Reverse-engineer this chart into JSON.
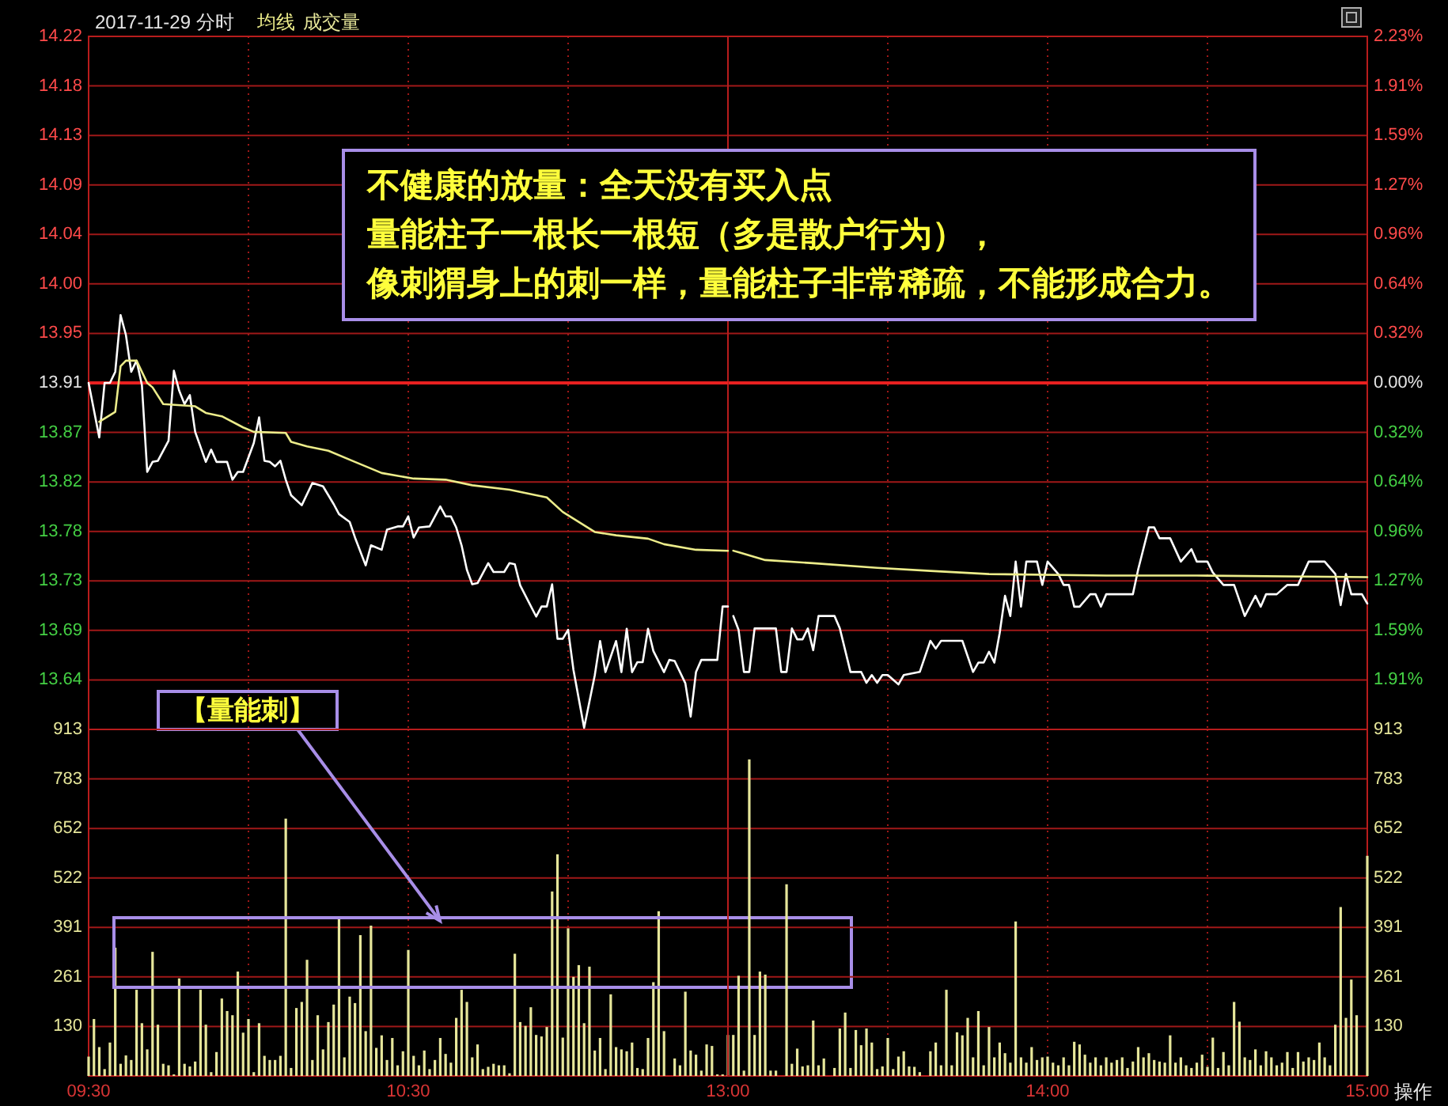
{
  "chart_data": [
    {
      "type": "line",
      "title": "2017-11-29 分时",
      "xlim": [
        9.5,
        11.5
      ],
      "xticks": [
        9.5,
        10,
        10.5,
        11,
        11.5
      ],
      "ylim": [
        13.5985,
        14.2215
      ],
      "yticks": [
        {
          "value": 13.643,
          "label": "13.64"
        },
        {
          "value": 13.6875,
          "label": "13.69"
        },
        {
          "value": 13.732,
          "label": "13.73"
        },
        {
          "value": 13.7765,
          "label": "13.78"
        },
        {
          "value": 13.821,
          "label": "13.82"
        },
        {
          "value": 13.8655,
          "label": "13.87"
        },
        {
          "value": 13.91,
          "label": "13.91"
        },
        {
          "value": 13.9545,
          "label": "13.95"
        },
        {
          "value": 13.999,
          "label": "14.00"
        },
        {
          "value": 14.0435,
          "label": "14.04"
        },
        {
          "value": 14.088,
          "label": "14.09"
        },
        {
          "value": 14.1325,
          "label": "14.13"
        },
        {
          "value": 14.177,
          "label": "14.18"
        },
        {
          "value": 14.2215,
          "label": "14.22"
        }
      ],
      "tick_labels": "y",
      "grid": true,
      "legend": "top left",
      "ref_lines": [
        {
          "axis": "y",
          "value": 13.91,
          "color": "#e82020"
        }
      ],
      "annotations": [
        "不健康的放量：全天没有买入点",
        "量能柱子一根长一根短（多是散户行为），像刺猬身上的刺一样，量能柱子非常稀疏，不能形成合力。"
      ],
      "series": [
        {
          "color": "#ffffff",
          "x": [
            9.5,
            9.5333,
            9.55,
            9.5667,
            9.5833,
            9.6,
            9.6167,
            9.6333,
            9.65,
            9.6667,
            9.6833,
            9.7,
            9.7167,
            9.75,
            9.7667,
            9.7833,
            9.8,
            9.8167,
            9.8333,
            9.8667,
            9.8833,
            9.9,
            9.9333,
            9.95,
            9.9667,
            9.9833,
            10.0167,
            10.0333,
            10.05,
            10.0667,
            10.0833,
            10.1,
            10.1167,
            10.1333,
            10.1667,
            10.2,
            10.2333,
            10.2667,
            10.2833,
            10.3167,
            10.3333,
            10.3667,
            10.3833,
            10.4167,
            10.4333,
            10.4667,
            10.4833,
            10.5,
            10.5167,
            10.5333,
            10.5667,
            10.6,
            10.6167,
            10.6333,
            10.65,
            10.6667,
            10.6833,
            10.7,
            10.7167,
            10.75,
            10.7667,
            10.8,
            10.8167,
            10.8333,
            10.85,
            10.9,
            10.9167,
            10.9333,
            10.95,
            10.9667,
            10.9833,
            11,
            11.0167,
            11.05,
            11.0833,
            11.1,
            11.1167,
            11.15,
            11.1667,
            11.1833,
            11.2,
            11.2167,
            11.2333,
            11.25,
            11.2667,
            11.3,
            11.3167,
            11.3333,
            11.3667,
            11.3833,
            11.4,
            11.4167,
            11.4667,
            11.4833,
            11.5
          ],
          "values": [
            13.91,
            13.861,
            13.91,
            13.91,
            13.92,
            13.971,
            13.953,
            13.92,
            13.93,
            13.908,
            13.83,
            13.839,
            13.84,
            13.858,
            13.921,
            13.903,
            13.891,
            13.899,
            13.866,
            13.839,
            13.85,
            13.839,
            13.839,
            13.823,
            13.83,
            13.83,
            13.856,
            13.879,
            13.84,
            13.839,
            13.835,
            13.84,
            13.823,
            13.809,
            13.8,
            13.82,
            13.817,
            13.801,
            13.792,
            13.785,
            13.771,
            13.746,
            13.764,
            13.76,
            13.778,
            13.781,
            13.781,
            13.79,
            13.771,
            13.78,
            13.781,
            13.799,
            13.79,
            13.79,
            13.78,
            13.764,
            13.742,
            13.729,
            13.73,
            13.748,
            13.74,
            13.74,
            13.748,
            13.747,
            13.728,
            13.7,
            13.709,
            13.709,
            13.729,
            13.68,
            13.68,
            13.688,
            13.652,
            13.6,
            13.647,
            13.678,
            13.65,
            13.678,
            13.65,
            13.689,
            13.65,
            13.659,
            13.659,
            13.689,
            13.669,
            13.65,
            13.661,
            13.66,
            13.64,
            13.61,
            13.65,
            13.661,
            13.661,
            13.709,
            13.709
          ]
        },
        {
          "name": "均线",
          "color": "#ecec8a",
          "x": [
            9.5333,
            9.5833,
            9.6,
            9.6167,
            9.65,
            9.6833,
            9.7,
            9.7333,
            9.8333,
            9.8667,
            9.9167,
            9.9833,
            10.0167,
            10.1167,
            10.1333,
            10.1833,
            10.25,
            10.3333,
            10.4167,
            10.5167,
            10.6167,
            10.7,
            10.8167,
            10.9333,
            10.9833,
            11.0833,
            11.15,
            11.25,
            11.3,
            11.4,
            11.5
          ],
          "values": [
            13.875,
            13.884,
            13.925,
            13.93,
            13.93,
            13.91,
            13.906,
            13.891,
            13.889,
            13.883,
            13.88,
            13.87,
            13.866,
            13.865,
            13.857,
            13.853,
            13.849,
            13.839,
            13.829,
            13.824,
            13.823,
            13.818,
            13.814,
            13.807,
            13.794,
            13.776,
            13.773,
            13.77,
            13.765,
            13.76,
            13.759
          ]
        }
      ]
    },
    {
      "type": "line",
      "xlim": [
        13,
        15
      ],
      "xticks": [
        13,
        13.5,
        14,
        14.5,
        15
      ],
      "ylim": [
        -2.23,
        2.23
      ],
      "yticks": [
        {
          "value": -1.9114,
          "label": "1.91%"
        },
        {
          "value": -1.5929,
          "label": "1.59%"
        },
        {
          "value": -1.2743,
          "label": "1.27%"
        },
        {
          "value": -0.9557,
          "label": "0.96%"
        },
        {
          "value": -0.6371,
          "label": "0.64%"
        },
        {
          "value": -0.3186,
          "label": "0.32%"
        },
        {
          "value": 0,
          "label": "0.00%"
        },
        {
          "value": 0.3186,
          "label": "0.32%"
        },
        {
          "value": 0.6371,
          "label": "0.64%"
        },
        {
          "value": 0.9557,
          "label": "0.96%"
        },
        {
          "value": 1.2743,
          "label": "1.27%"
        },
        {
          "value": 1.5929,
          "label": "1.59%"
        },
        {
          "value": 1.9114,
          "label": "1.91%"
        },
        {
          "value": 2.23,
          "label": "2.23%"
        }
      ],
      "tick_labels": "y",
      "grid": true,
      "ref_lines": [
        {
          "axis": "y",
          "value": 0,
          "color": "#e82020"
        }
      ],
      "series": [
        {
          "color": "#ffffff",
          "x": [
            13.0167,
            13.0333,
            13.05,
            13.0667,
            13.0833,
            13.15,
            13.1667,
            13.1833,
            13.2,
            13.2167,
            13.2333,
            13.25,
            13.2667,
            13.2833,
            13.3333,
            13.35,
            13.3833,
            13.4167,
            13.4333,
            13.45,
            13.4667,
            13.4833,
            13.5,
            13.5333,
            13.55,
            13.6,
            13.6333,
            13.65,
            13.6667,
            13.7333,
            13.7667,
            13.7833,
            13.8,
            13.8167,
            13.8333,
            13.85,
            13.8667,
            13.8833,
            13.9,
            13.9167,
            13.9333,
            13.9667,
            13.9833,
            14,
            14.0333,
            14.05,
            14.0667,
            14.0833,
            14.1,
            14.1333,
            14.15,
            14.1667,
            14.1833,
            14.2667,
            14.2833,
            14.3167,
            14.3333,
            14.35,
            14.3833,
            14.4167,
            14.45,
            14.4667,
            14.5,
            14.5167,
            14.55,
            14.5833,
            14.6167,
            14.65,
            14.6667,
            14.6833,
            14.7167,
            14.75,
            14.7833,
            14.8167,
            14.8667,
            14.9,
            14.9167,
            14.9333,
            14.95,
            14.9833,
            15
          ],
          "values": [
            -1.5,
            -1.59,
            -1.86,
            -1.86,
            -1.58,
            -1.58,
            -1.86,
            -1.86,
            -1.58,
            -1.65,
            -1.65,
            -1.58,
            -1.72,
            -1.5,
            -1.5,
            -1.58,
            -1.86,
            -1.86,
            -1.93,
            -1.88,
            -1.93,
            -1.88,
            -1.88,
            -1.94,
            -1.88,
            -1.86,
            -1.66,
            -1.71,
            -1.66,
            -1.66,
            -1.86,
            -1.8,
            -1.8,
            -1.73,
            -1.8,
            -1.61,
            -1.37,
            -1.5,
            -1.15,
            -1.44,
            -1.15,
            -1.15,
            -1.3,
            -1.15,
            -1.23,
            -1.3,
            -1.3,
            -1.44,
            -1.44,
            -1.36,
            -1.36,
            -1.44,
            -1.36,
            -1.36,
            -1.2,
            -0.93,
            -0.93,
            -1,
            -1,
            -1.15,
            -1.07,
            -1.15,
            -1.15,
            -1.22,
            -1.3,
            -1.3,
            -1.5,
            -1.37,
            -1.44,
            -1.36,
            -1.36,
            -1.3,
            -1.3,
            -1.15,
            -1.15,
            -1.23,
            -1.43,
            -1.23,
            -1.36,
            -1.36,
            -1.42
          ]
        },
        {
          "color": "#ecec8a",
          "x": [
            13.0167,
            13.0333,
            13.1167,
            13.2667,
            13.4667,
            13.6333,
            13.8167,
            14.1833,
            14.4667,
            15
          ],
          "values": [
            -1.08,
            -1.09,
            -1.14,
            -1.16,
            -1.19,
            -1.21,
            -1.23,
            -1.24,
            -1.24,
            -1.25
          ]
        }
      ]
    },
    {
      "type": "bar",
      "xlim": [
        9.5,
        11.5
      ],
      "xticks": [
        {
          "value": 9.5,
          "label": "09:30"
        },
        {
          "value": 10,
          "label": null
        },
        {
          "value": 10.5,
          "label": "10:30"
        },
        {
          "value": 11,
          "label": null
        }
      ],
      "ylim": [
        0,
        913
      ],
      "yticks": [
        {
          "value": 130.43,
          "label": "130"
        },
        {
          "value": 260.86,
          "label": "261"
        },
        {
          "value": 391.29,
          "label": "391"
        },
        {
          "value": 521.71,
          "label": "522"
        },
        {
          "value": 652.14,
          "label": "652"
        },
        {
          "value": 782.57,
          "label": "783"
        },
        {
          "value": 913,
          "label": "913"
        }
      ],
      "grid": true,
      "legend": "top left",
      "annotations": [
        "【量能刺】"
      ],
      "series": [
        {
          "name": "成交量",
          "color": "#e6e69a",
          "x": [
            9.5,
            9.5167,
            9.5333,
            9.55,
            9.5667,
            9.5833,
            9.6,
            9.6167,
            9.6333,
            9.65,
            9.6667,
            9.6833,
            9.7,
            9.7167,
            9.7333,
            9.75,
            9.7667,
            9.7833,
            9.8,
            9.8167,
            9.8333,
            9.85,
            9.8667,
            9.8833,
            9.9,
            9.9167,
            9.9333,
            9.95,
            9.9667,
            9.9833,
            10,
            10.0167,
            10.0333,
            10.05,
            10.0667,
            10.0833,
            10.1,
            10.1167,
            10.1333,
            10.15,
            10.1667,
            10.1833,
            10.2,
            10.2167,
            10.2333,
            10.25,
            10.2667,
            10.2833,
            10.3,
            10.3167,
            10.3333,
            10.35,
            10.3667,
            10.3833,
            10.4,
            10.4167,
            10.4333,
            10.45,
            10.4667,
            10.4833,
            10.5,
            10.5167,
            10.5333,
            10.55,
            10.5667,
            10.5833,
            10.6,
            10.6167,
            10.6333,
            10.65,
            10.6667,
            10.6833,
            10.7,
            10.7167,
            10.7333,
            10.75,
            10.7667,
            10.7833,
            10.8,
            10.8167,
            10.8333,
            10.85,
            10.8667,
            10.8833,
            10.9,
            10.9167,
            10.9333,
            10.95,
            10.9667,
            10.9833,
            11,
            11.0167,
            11.0333,
            11.05,
            11.0667,
            11.0833,
            11.1,
            11.1167,
            11.1333,
            11.15,
            11.1667,
            11.1833,
            11.2,
            11.2167,
            11.2333,
            11.25,
            11.2667,
            11.2833,
            11.3,
            11.3333,
            11.35,
            11.3667,
            11.3833,
            11.4,
            11.4167,
            11.4333,
            11.45,
            11.4667,
            11.4833,
            11.5
          ],
          "values": [
            51,
            150,
            76,
            18,
            88,
            338,
            32,
            54,
            42,
            227,
            139,
            70,
            327,
            135,
            32,
            28,
            4,
            257,
            32,
            25,
            38,
            227,
            135,
            10,
            63,
            204,
            171,
            160,
            275,
            114,
            150,
            10,
            139,
            53,
            42,
            42,
            53,
            678,
            21,
            179,
            195,
            306,
            42,
            160,
            70,
            142,
            188,
            420,
            49,
            209,
            192,
            371,
            118,
            396,
            74,
            107,
            42,
            100,
            28,
            65,
            332,
            53,
            28,
            67,
            18,
            42,
            100,
            58,
            35,
            153,
            227,
            195,
            49,
            83,
            18,
            24,
            32,
            28,
            28,
            7,
            322,
            142,
            132,
            181,
            108,
            104,
            129,
            486,
            584,
            101,
            389,
            261,
            292,
            139,
            288,
            67,
            100,
            18,
            215,
            76,
            70,
            65,
            88,
            21,
            18,
            100,
            247,
            434,
            118,
            46,
            28,
            222,
            67,
            56,
            14,
            83,
            79,
            4,
            4,
            108
          ]
        }
      ]
    },
    {
      "type": "bar",
      "xlim": [
        13,
        15
      ],
      "xticks": [
        {
          "value": 13,
          "label": "13:00"
        },
        {
          "value": 13.5,
          "label": null
        },
        {
          "value": 14,
          "label": "14:00"
        },
        {
          "value": 14.5,
          "label": null
        },
        {
          "value": 15,
          "label": "15:00"
        }
      ],
      "ylim": [
        0,
        913
      ],
      "yticks": [
        {
          "value": 130.43,
          "label": "130"
        },
        {
          "value": 260.86,
          "label": "261"
        },
        {
          "value": 391.29,
          "label": "391"
        },
        {
          "value": 521.71,
          "label": "522"
        },
        {
          "value": 652.14,
          "label": "652"
        },
        {
          "value": 782.57,
          "label": "783"
        },
        {
          "value": 913,
          "label": "913"
        }
      ],
      "grid": true,
      "annotations": [
        "操作"
      ],
      "series": [
        {
          "color": "#e6e69a",
          "x": [
            13.0167,
            13.0333,
            13.05,
            13.0667,
            13.0833,
            13.1,
            13.1167,
            13.1333,
            13.15,
            13.1833,
            13.2,
            13.2167,
            13.2333,
            13.25,
            13.2667,
            13.2833,
            13.3,
            13.3333,
            13.35,
            13.3667,
            13.3833,
            13.4,
            13.4167,
            13.4333,
            13.45,
            13.4667,
            13.4833,
            13.5,
            13.5167,
            13.5333,
            13.55,
            13.5667,
            13.5833,
            13.6,
            13.6333,
            13.65,
            13.6667,
            13.6833,
            13.7,
            13.7167,
            13.7333,
            13.75,
            13.7667,
            13.7833,
            13.8,
            13.8167,
            13.8333,
            13.85,
            13.8667,
            13.8833,
            13.9,
            13.9167,
            13.9333,
            13.95,
            13.9667,
            13.9833,
            14,
            14.0167,
            14.0333,
            14.05,
            14.0667,
            14.0833,
            14.1,
            14.1167,
            14.1333,
            14.15,
            14.1667,
            14.1833,
            14.2,
            14.2167,
            14.2333,
            14.25,
            14.2667,
            14.2833,
            14.3,
            14.3167,
            14.3333,
            14.35,
            14.3667,
            14.3833,
            14.4,
            14.4167,
            14.4333,
            14.45,
            14.4667,
            14.4833,
            14.5,
            14.5167,
            14.5333,
            14.55,
            14.5667,
            14.5833,
            14.6,
            14.6167,
            14.6333,
            14.65,
            14.6667,
            14.6833,
            14.7,
            14.7167,
            14.7333,
            14.75,
            14.7667,
            14.7833,
            14.8,
            14.8167,
            14.8333,
            14.85,
            14.8667,
            14.8833,
            14.9,
            14.9167,
            14.9333,
            14.95,
            14.9667,
            15
          ],
          "values": [
            108,
            264,
            14,
            834,
            108,
            275,
            267,
            14,
            14,
            505,
            32,
            72,
            25,
            28,
            146,
            28,
            46,
            21,
            125,
            167,
            21,
            121,
            81,
            125,
            88,
            18,
            25,
            100,
            18,
            51,
            65,
            25,
            24,
            10,
            65,
            88,
            28,
            227,
            28,
            115,
            107,
            153,
            49,
            171,
            28,
            129,
            49,
            88,
            60,
            35,
            407,
            49,
            35,
            76,
            42,
            49,
            51,
            35,
            28,
            49,
            28,
            90,
            83,
            56,
            35,
            49,
            28,
            49,
            35,
            42,
            49,
            21,
            38,
            76,
            49,
            60,
            42,
            38,
            35,
            107,
            35,
            49,
            28,
            21,
            35,
            56,
            24,
            101,
            21,
            63,
            28,
            195,
            143,
            49,
            42,
            70,
            28,
            65,
            49,
            28,
            35,
            63,
            21,
            63,
            38,
            49,
            42,
            88,
            49,
            28,
            135,
            445,
            153,
            254,
            160,
            580
          ]
        }
      ]
    }
  ]
}
